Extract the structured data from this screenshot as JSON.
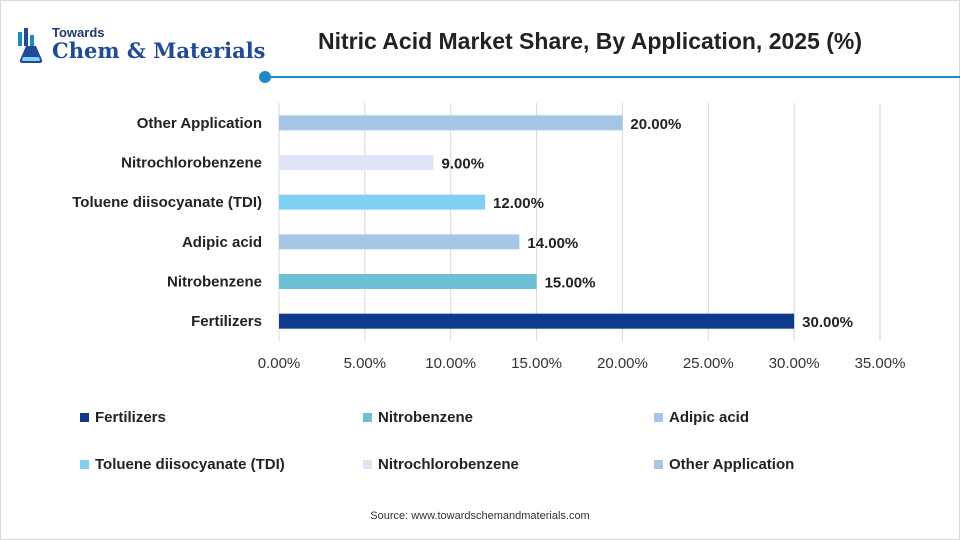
{
  "brand": {
    "small": "Towards",
    "main": "Chem & Materials"
  },
  "accent_color": "#1a8ac8",
  "chart_data": {
    "type": "bar",
    "orientation": "horizontal",
    "title": "Nitric Acid Market Share, By Application, 2025 (%)",
    "categories": [
      "Fertilizers",
      "Nitrobenzene",
      "Adipic acid",
      "Toluene diisocyanate (TDI)",
      "Nitrochlorobenzene",
      "Other Application"
    ],
    "values": [
      30,
      15,
      14,
      12,
      9,
      20
    ],
    "value_labels": [
      "30.00%",
      "15.00%",
      "14.00%",
      "12.00%",
      "9.00%",
      "20.00%"
    ],
    "colors": [
      "#0d3a8c",
      "#6cc0d4",
      "#a6c6e6",
      "#7fd0f5",
      "#e0e4f6",
      "#a6c6e6"
    ],
    "xlim": [
      0,
      35
    ],
    "xticks": [
      0,
      5,
      10,
      15,
      20,
      25,
      30,
      35
    ],
    "xtick_labels": [
      "0.00%",
      "5.00%",
      "10.00%",
      "15.00%",
      "20.00%",
      "25.00%",
      "30.00%",
      "35.00%"
    ],
    "grid": "vertical",
    "legend_position": "bottom"
  },
  "source": "Source: www.towardschemandmaterials.com"
}
